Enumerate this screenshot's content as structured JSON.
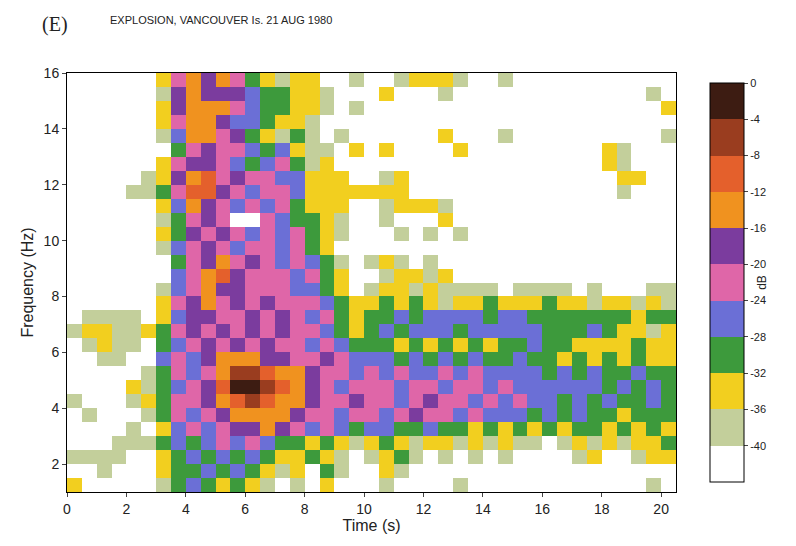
{
  "chart_data": {
    "type": "heatmap",
    "panel_label": "(E)",
    "title": "EXPLOSION, VANCOUVER Is. 21 AUG 1980",
    "x_label": "Time (s)",
    "y_label": "Frequency (Hz)",
    "xlim": [
      0,
      20.5
    ],
    "ylim": [
      1,
      16
    ],
    "xticks": [
      0,
      2,
      4,
      6,
      8,
      10,
      12,
      14,
      16,
      18,
      20
    ],
    "yticks": [
      2,
      4,
      6,
      8,
      10,
      12,
      14,
      16
    ],
    "grid": false,
    "x": [
      0.25,
      0.75,
      1.25,
      1.75,
      2.25,
      2.75,
      3.25,
      3.75,
      4.25,
      4.75,
      5.25,
      5.75,
      6.25,
      6.75,
      7.25,
      7.75,
      8.25,
      8.75,
      9.25,
      9.75,
      10.25,
      10.75,
      11.25,
      11.75,
      12.25,
      12.75,
      13.25,
      13.75,
      14.25,
      14.75,
      15.25,
      15.75,
      16.25,
      16.75,
      17.25,
      17.75,
      18.25,
      18.75,
      19.25,
      19.75,
      20.25
    ],
    "y": [
      1.25,
      1.75,
      2.25,
      2.75,
      3.25,
      3.75,
      4.25,
      4.75,
      5.25,
      5.75,
      6.25,
      6.75,
      7.25,
      7.75,
      8.25,
      8.75,
      9.25,
      9.75,
      10.25,
      10.75,
      11.25,
      11.75,
      12.25,
      12.75,
      13.25,
      13.75,
      14.25,
      14.75,
      15.25,
      15.75
    ],
    "z": [
      [
        -34,
        null,
        null,
        null,
        null,
        null,
        -38,
        -30,
        -26,
        -30,
        -34,
        -30,
        -34,
        -38,
        null,
        -38,
        null,
        -34,
        null,
        null,
        null,
        -38,
        null,
        null,
        null,
        null,
        -38,
        null,
        null,
        null,
        null,
        null,
        null,
        null,
        null,
        null,
        null,
        null,
        null,
        -38,
        null
      ],
      [
        null,
        null,
        -38,
        null,
        null,
        null,
        -34,
        -30,
        -30,
        -26,
        -30,
        -26,
        -30,
        -34,
        -38,
        -34,
        null,
        -30,
        -38,
        null,
        null,
        -34,
        -38,
        null,
        null,
        null,
        null,
        null,
        null,
        null,
        null,
        null,
        null,
        null,
        null,
        null,
        null,
        null,
        null,
        null,
        null
      ],
      [
        -38,
        -38,
        -38,
        -38,
        null,
        null,
        -34,
        -30,
        -26,
        -30,
        -26,
        -30,
        -26,
        -30,
        -34,
        -34,
        -30,
        -34,
        -38,
        null,
        -38,
        -34,
        -30,
        -38,
        null,
        -38,
        null,
        -38,
        null,
        -38,
        null,
        null,
        null,
        null,
        -38,
        -34,
        null,
        null,
        -38,
        -34,
        -34
      ],
      [
        null,
        null,
        null,
        -38,
        -38,
        -38,
        -30,
        -26,
        -30,
        -26,
        -22,
        -26,
        -22,
        -26,
        -30,
        -30,
        -34,
        -30,
        -34,
        -38,
        -34,
        -30,
        -34,
        -38,
        -34,
        -34,
        -38,
        -34,
        -38,
        -34,
        -38,
        -38,
        null,
        -38,
        -34,
        -38,
        -34,
        -38,
        -34,
        -34,
        -30
      ],
      [
        null,
        null,
        null,
        null,
        -38,
        null,
        -34,
        -26,
        -22,
        -26,
        -22,
        -18,
        -18,
        -14,
        -18,
        -22,
        -26,
        -22,
        -26,
        -30,
        -26,
        -26,
        -30,
        -30,
        -26,
        -30,
        -30,
        -34,
        -30,
        -34,
        -30,
        -34,
        -30,
        -34,
        -30,
        -30,
        -34,
        -30,
        -34,
        -30,
        -34
      ],
      [
        null,
        -38,
        null,
        null,
        null,
        -38,
        -30,
        -22,
        -26,
        -22,
        -18,
        -14,
        -14,
        -14,
        -14,
        -18,
        -22,
        -22,
        -26,
        -22,
        -22,
        -26,
        -22,
        -18,
        -22,
        -22,
        -26,
        -22,
        -26,
        -26,
        -26,
        -30,
        -26,
        -30,
        -26,
        -30,
        -30,
        -34,
        -30,
        -30,
        -30
      ],
      [
        -38,
        null,
        null,
        null,
        -38,
        -34,
        -30,
        -22,
        -22,
        -18,
        -14,
        -10,
        -6,
        -10,
        -14,
        -14,
        -18,
        -22,
        -22,
        -18,
        -22,
        -22,
        -26,
        -22,
        -18,
        -22,
        -22,
        -26,
        -22,
        -26,
        -22,
        -26,
        -26,
        -30,
        -26,
        -30,
        -26,
        -30,
        -30,
        -26,
        -30
      ],
      [
        null,
        null,
        null,
        null,
        -34,
        -38,
        -30,
        -26,
        -22,
        -18,
        -10,
        -2,
        -2,
        -6,
        -10,
        -14,
        -18,
        -22,
        -26,
        -22,
        -22,
        -22,
        -26,
        -22,
        -22,
        -26,
        -22,
        -22,
        -26,
        -22,
        -26,
        -26,
        -26,
        -26,
        -26,
        -26,
        -30,
        -26,
        -30,
        -26,
        -30
      ],
      [
        null,
        null,
        null,
        null,
        null,
        -38,
        -30,
        -22,
        -26,
        -22,
        -14,
        -6,
        -6,
        -10,
        -14,
        -14,
        -18,
        -22,
        -22,
        -26,
        -22,
        -26,
        -22,
        -26,
        -26,
        -22,
        -26,
        -22,
        -26,
        -26,
        -26,
        -26,
        -30,
        -26,
        -30,
        -26,
        -30,
        -30,
        -26,
        -30,
        -30
      ],
      [
        null,
        null,
        -38,
        -38,
        null,
        null,
        -26,
        -22,
        -26,
        -18,
        -14,
        -14,
        -14,
        -18,
        -18,
        -22,
        -22,
        -18,
        -22,
        -26,
        -26,
        -26,
        -30,
        -26,
        -30,
        -26,
        -30,
        -26,
        -30,
        -30,
        -26,
        -30,
        -30,
        -34,
        -30,
        -34,
        -30,
        -34,
        -30,
        -34,
        -34
      ],
      [
        null,
        -38,
        -34,
        -38,
        -38,
        null,
        -30,
        -26,
        -22,
        -18,
        -22,
        -18,
        -22,
        -18,
        -22,
        -22,
        -26,
        -22,
        -26,
        -30,
        -30,
        -30,
        -34,
        -30,
        -34,
        -30,
        -34,
        -30,
        -34,
        -30,
        -30,
        -26,
        -30,
        -30,
        -34,
        -34,
        -34,
        -34,
        -30,
        -34,
        -34
      ],
      [
        -38,
        -34,
        -34,
        -38,
        -38,
        -34,
        -30,
        -22,
        -18,
        -22,
        -18,
        -22,
        -18,
        -22,
        -18,
        -22,
        -22,
        -26,
        -30,
        -34,
        -30,
        -26,
        -30,
        -26,
        -26,
        -26,
        -30,
        -26,
        -26,
        -26,
        -26,
        -26,
        -30,
        -30,
        -30,
        -26,
        -30,
        -34,
        -34,
        -38,
        -34
      ],
      [
        null,
        -38,
        -38,
        -38,
        -38,
        null,
        -34,
        -26,
        -18,
        -18,
        -22,
        -22,
        -18,
        -22,
        -18,
        -22,
        -26,
        -22,
        -30,
        -34,
        -30,
        -30,
        -26,
        -30,
        -26,
        -26,
        -26,
        -26,
        -30,
        -26,
        -26,
        -30,
        -30,
        -30,
        -30,
        -30,
        -30,
        -30,
        -34,
        -30,
        -30
      ],
      [
        null,
        null,
        null,
        null,
        null,
        null,
        -34,
        -22,
        -18,
        -14,
        -22,
        -18,
        -22,
        -18,
        -22,
        -22,
        -22,
        -26,
        -30,
        -34,
        -34,
        -30,
        -34,
        -30,
        -34,
        -38,
        -34,
        -34,
        -30,
        -34,
        -34,
        -34,
        -30,
        -34,
        -34,
        -38,
        -34,
        -34,
        -38,
        -34,
        -38
      ],
      [
        null,
        null,
        null,
        null,
        null,
        null,
        -38,
        -26,
        -22,
        -14,
        -18,
        -18,
        -22,
        -22,
        -22,
        -26,
        -26,
        -30,
        -34,
        null,
        -38,
        -34,
        -34,
        -38,
        -34,
        -38,
        -38,
        -38,
        -38,
        null,
        -38,
        -38,
        -38,
        -38,
        null,
        -38,
        null,
        null,
        null,
        -38,
        -38
      ],
      [
        null,
        null,
        null,
        null,
        null,
        null,
        null,
        -26,
        -22,
        -14,
        -10,
        -18,
        -22,
        -22,
        -22,
        -26,
        -22,
        -30,
        -34,
        null,
        null,
        -38,
        -34,
        -34,
        -38,
        -34,
        null,
        null,
        null,
        null,
        null,
        null,
        null,
        null,
        null,
        null,
        null,
        null,
        null,
        null,
        null
      ],
      [
        null,
        null,
        null,
        null,
        null,
        null,
        null,
        -30,
        -22,
        -18,
        -14,
        -22,
        -18,
        -22,
        -26,
        -22,
        -26,
        -30,
        -38,
        null,
        -38,
        -34,
        -38,
        null,
        -38,
        null,
        null,
        null,
        null,
        null,
        null,
        null,
        null,
        null,
        null,
        null,
        null,
        null,
        null,
        null,
        null
      ],
      [
        null,
        null,
        null,
        null,
        null,
        null,
        -38,
        -26,
        -22,
        -18,
        -22,
        -26,
        -22,
        -22,
        -26,
        -22,
        -30,
        -34,
        null,
        null,
        null,
        null,
        null,
        null,
        null,
        null,
        null,
        null,
        null,
        null,
        null,
        null,
        null,
        null,
        null,
        null,
        null,
        null,
        null,
        null,
        null
      ],
      [
        null,
        null,
        null,
        null,
        null,
        null,
        -34,
        -30,
        -18,
        -22,
        -18,
        -22,
        -26,
        -22,
        -26,
        -22,
        -30,
        -34,
        -38,
        null,
        null,
        null,
        -38,
        null,
        -38,
        null,
        -38,
        null,
        null,
        null,
        null,
        null,
        null,
        null,
        null,
        null,
        null,
        null,
        null,
        null,
        null
      ],
      [
        null,
        null,
        null,
        null,
        null,
        null,
        -38,
        -30,
        -22,
        -18,
        -22,
        null,
        null,
        -22,
        -26,
        -30,
        -30,
        -34,
        -38,
        null,
        null,
        -38,
        null,
        null,
        null,
        -34,
        null,
        null,
        null,
        null,
        null,
        null,
        null,
        null,
        null,
        null,
        null,
        null,
        null,
        null,
        null
      ],
      [
        null,
        null,
        null,
        null,
        null,
        null,
        -34,
        -26,
        -14,
        -18,
        -22,
        -26,
        -22,
        -26,
        -22,
        -30,
        -34,
        -34,
        -34,
        null,
        null,
        -38,
        -34,
        -34,
        -34,
        -38,
        null,
        null,
        null,
        null,
        null,
        null,
        null,
        null,
        null,
        null,
        null,
        null,
        null,
        null,
        null
      ],
      [
        null,
        null,
        null,
        null,
        -38,
        -38,
        -30,
        -22,
        -10,
        -10,
        -18,
        -22,
        -26,
        -22,
        -22,
        -26,
        -34,
        -34,
        -34,
        -34,
        -34,
        -34,
        -34,
        null,
        null,
        null,
        null,
        null,
        null,
        null,
        null,
        null,
        null,
        null,
        null,
        null,
        null,
        -38,
        null,
        null,
        null
      ],
      [
        null,
        null,
        null,
        null,
        null,
        -38,
        -34,
        -18,
        -14,
        -10,
        -22,
        -18,
        -22,
        -22,
        -26,
        -26,
        -34,
        -34,
        -34,
        null,
        null,
        -38,
        -34,
        null,
        null,
        null,
        null,
        null,
        null,
        null,
        null,
        null,
        null,
        null,
        null,
        null,
        null,
        -34,
        -34,
        null,
        null
      ],
      [
        null,
        null,
        null,
        null,
        null,
        null,
        -34,
        -22,
        -18,
        -18,
        -22,
        -26,
        -30,
        -26,
        -22,
        -30,
        -38,
        -34,
        null,
        null,
        null,
        null,
        null,
        null,
        null,
        null,
        null,
        null,
        null,
        null,
        null,
        null,
        null,
        null,
        null,
        null,
        -34,
        -38,
        null,
        null,
        null
      ],
      [
        null,
        null,
        null,
        null,
        null,
        null,
        null,
        -30,
        -22,
        -18,
        -22,
        -22,
        -26,
        -30,
        -26,
        -34,
        -38,
        -38,
        null,
        -34,
        null,
        -34,
        null,
        null,
        null,
        null,
        -34,
        null,
        null,
        null,
        null,
        null,
        null,
        null,
        null,
        null,
        -34,
        -38,
        null,
        null,
        null
      ],
      [
        null,
        null,
        null,
        null,
        null,
        null,
        -38,
        -26,
        -14,
        -14,
        -22,
        -18,
        -30,
        -34,
        -38,
        -30,
        -38,
        null,
        -38,
        null,
        null,
        null,
        null,
        null,
        null,
        -34,
        null,
        null,
        null,
        -38,
        null,
        null,
        null,
        null,
        null,
        null,
        null,
        null,
        null,
        null,
        -38
      ],
      [
        null,
        null,
        null,
        null,
        null,
        null,
        -34,
        -22,
        -14,
        -14,
        -18,
        -26,
        -26,
        -30,
        -34,
        -34,
        -38,
        null,
        null,
        null,
        null,
        null,
        null,
        null,
        null,
        null,
        null,
        null,
        null,
        null,
        null,
        null,
        null,
        null,
        null,
        null,
        null,
        null,
        null,
        null,
        null
      ],
      [
        null,
        null,
        null,
        null,
        null,
        null,
        -34,
        -18,
        -14,
        -14,
        -14,
        -22,
        -26,
        -30,
        -30,
        -34,
        -34,
        -38,
        null,
        -38,
        null,
        null,
        null,
        null,
        null,
        null,
        null,
        null,
        null,
        null,
        null,
        null,
        null,
        null,
        null,
        null,
        null,
        null,
        null,
        null,
        -34
      ],
      [
        null,
        null,
        null,
        null,
        null,
        null,
        -38,
        -18,
        -14,
        -18,
        -18,
        -18,
        -26,
        -30,
        -30,
        -34,
        -34,
        -38,
        null,
        null,
        null,
        -34,
        null,
        null,
        null,
        -38,
        null,
        null,
        null,
        null,
        null,
        null,
        null,
        null,
        null,
        null,
        null,
        null,
        null,
        -38,
        null
      ],
      [
        null,
        null,
        null,
        null,
        null,
        null,
        -34,
        -22,
        -14,
        -18,
        -14,
        -22,
        -30,
        -34,
        -38,
        -34,
        -34,
        null,
        null,
        -38,
        null,
        null,
        -38,
        -34,
        -34,
        -34,
        -38,
        null,
        null,
        -38,
        null,
        null,
        null,
        null,
        null,
        null,
        null,
        null,
        null,
        null,
        null
      ]
    ],
    "colorbar": {
      "label": "dB",
      "range": [
        -44,
        0
      ],
      "ticks": [
        0,
        -4,
        -8,
        -12,
        -16,
        -20,
        -24,
        -28,
        -32,
        -36,
        -40
      ],
      "colors": [
        "#ffffff",
        "#c3cf9b",
        "#f2cf1f",
        "#3d9a3c",
        "#6b6fd6",
        "#df66a8",
        "#7b3c9e",
        "#f0921f",
        "#e4602c",
        "#9a3d1f",
        "#3d1c12"
      ]
    }
  }
}
